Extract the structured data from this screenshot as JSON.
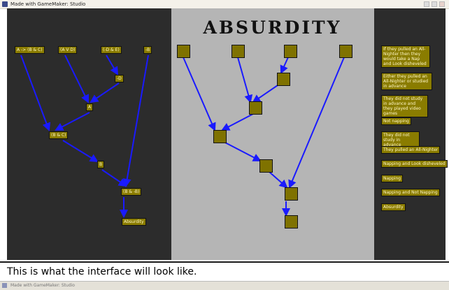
{
  "window": {
    "title": "Made with GameMaker: Studio"
  },
  "header": {
    "title": "Absurdity"
  },
  "proof_nodes": [
    {
      "text": "A -> (B & C)"
    },
    {
      "text": "(A V D)"
    },
    {
      "text": "(-D & E)"
    },
    {
      "text": "-B"
    },
    {
      "text": "-D"
    },
    {
      "text": "A"
    },
    {
      "text": "(B & C)"
    },
    {
      "text": "B"
    },
    {
      "text": "(B & -B)"
    },
    {
      "text": "Absurdity"
    }
  ],
  "sentences": [
    {
      "text": "If they pulled an All-Nighter then they would take a Nap and Look disheveled"
    },
    {
      "text": "Either they pulled an All-Nighter or studied in advance"
    },
    {
      "text": "They did not study in advance and they played video games"
    },
    {
      "text": "Not napping"
    },
    {
      "text": "They did not study in advance"
    },
    {
      "text": "They pulled an All-Nighter"
    },
    {
      "text": "Napping and Look disheveled"
    },
    {
      "text": "Napping"
    },
    {
      "text": "Napping and Not Napping"
    },
    {
      "text": "Absurdity"
    }
  ],
  "caption": {
    "text": "This is what the interface will look like."
  },
  "colors": {
    "wire": "#1a1aff",
    "node": "#7f7200",
    "left_bg": "#2c2c2c",
    "middle_bg": "#b5b5b5"
  }
}
